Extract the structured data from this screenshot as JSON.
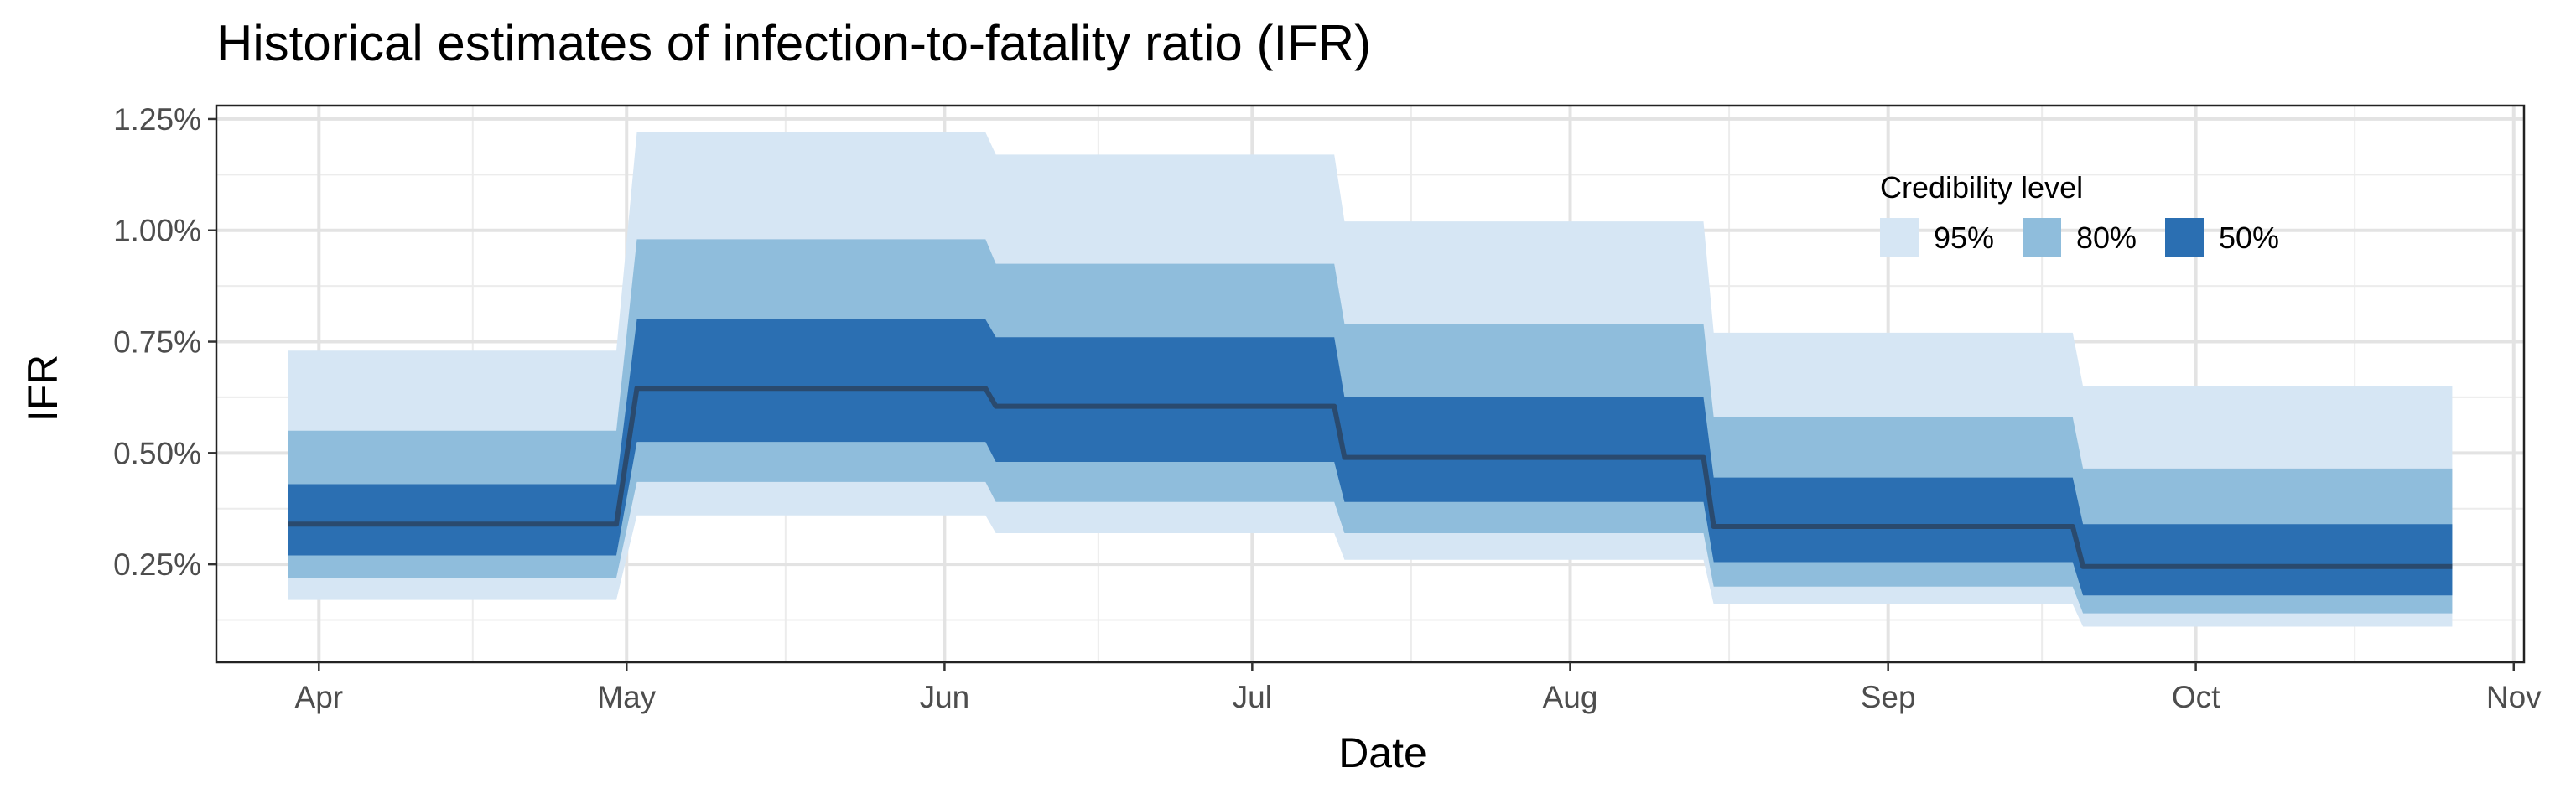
{
  "chart_data": {
    "type": "area",
    "title": "Historical estimates of infection-to-fatality ratio (IFR)",
    "xlabel": "Date",
    "ylabel": "IFR",
    "x_ticks": [
      "Apr",
      "May",
      "Jun",
      "Jul",
      "Aug",
      "Sep",
      "Oct",
      "Nov"
    ],
    "x_tick_dates": [
      "2020-04-01",
      "2020-05-01",
      "2020-06-01",
      "2020-07-01",
      "2020-08-01",
      "2020-09-01",
      "2020-10-01",
      "2020-11-01"
    ],
    "y_ticks": [
      "0.25%",
      "0.50%",
      "0.75%",
      "1.00%",
      "1.25%"
    ],
    "y_tick_values": [
      0.25,
      0.5,
      0.75,
      1.0,
      1.25
    ],
    "xlim": [
      "2020-03-22",
      "2020-11-02"
    ],
    "ylim": [
      0.03,
      1.28
    ],
    "y_unit": "%",
    "grid": true,
    "legend": {
      "title": "Credibility level",
      "placement": "top-right inside",
      "items": [
        {
          "label": "95%",
          "color": "#d6e6f4"
        },
        {
          "label": "80%",
          "color": "#8fbddc"
        },
        {
          "label": "50%",
          "color": "#2b6fb2"
        }
      ]
    },
    "colors": {
      "median": "#2a4a6e",
      "c95": "#d6e6f4",
      "c80": "#8fbddc",
      "c50": "#2b6fb2"
    },
    "segments": [
      {
        "start": "2020-03-29",
        "end": "2020-04-30",
        "median": 0.34,
        "lo95": 0.17,
        "hi95": 0.73,
        "lo80": 0.22,
        "hi80": 0.55,
        "lo50": 0.27,
        "hi50": 0.43
      },
      {
        "start": "2020-05-02",
        "end": "2020-06-05",
        "median": 0.645,
        "lo95": 0.36,
        "hi95": 1.22,
        "lo80": 0.435,
        "hi80": 0.98,
        "lo50": 0.525,
        "hi50": 0.8
      },
      {
        "start": "2020-06-06",
        "end": "2020-07-09",
        "median": 0.605,
        "lo95": 0.32,
        "hi95": 1.17,
        "lo80": 0.39,
        "hi80": 0.925,
        "lo50": 0.48,
        "hi50": 0.76
      },
      {
        "start": "2020-07-10",
        "end": "2020-08-14",
        "median": 0.49,
        "lo95": 0.26,
        "hi95": 1.02,
        "lo80": 0.32,
        "hi80": 0.79,
        "lo50": 0.39,
        "hi50": 0.625
      },
      {
        "start": "2020-08-15",
        "end": "2020-09-19",
        "median": 0.335,
        "lo95": 0.16,
        "hi95": 0.77,
        "lo80": 0.2,
        "hi80": 0.58,
        "lo50": 0.255,
        "hi50": 0.445
      },
      {
        "start": "2020-09-20",
        "end": "2020-10-26",
        "median": 0.245,
        "lo95": 0.11,
        "hi95": 0.65,
        "lo80": 0.14,
        "hi80": 0.465,
        "lo50": 0.18,
        "hi50": 0.34
      }
    ]
  }
}
